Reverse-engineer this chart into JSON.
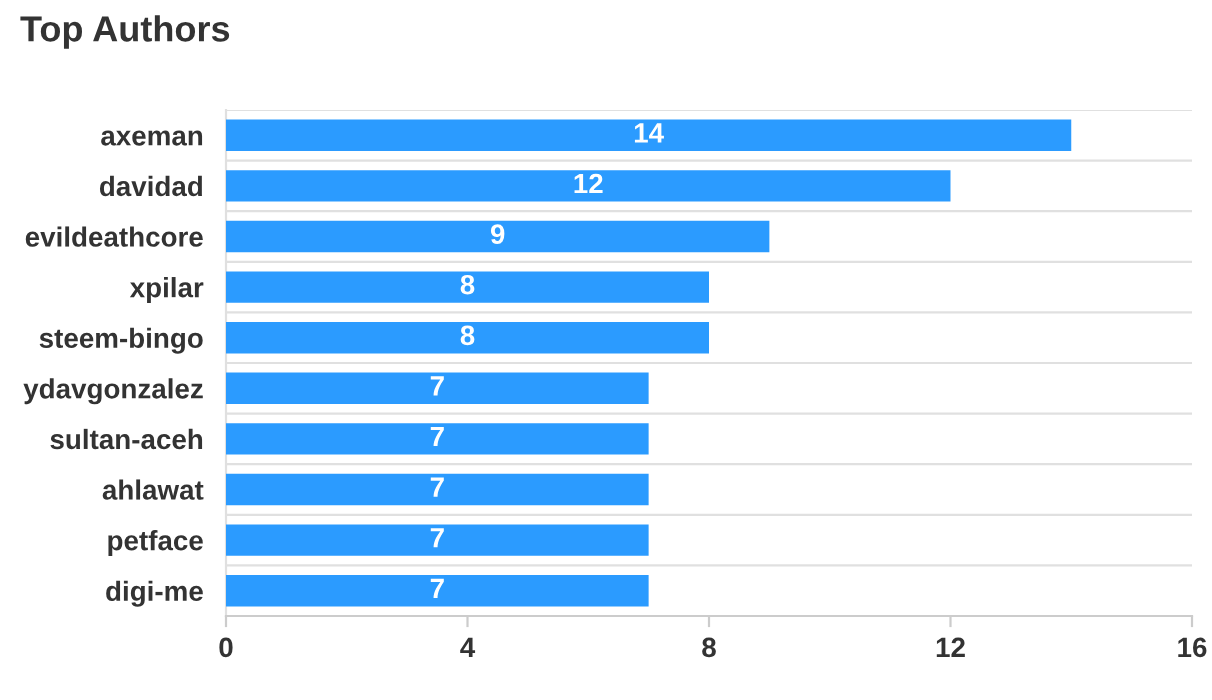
{
  "chart_data": {
    "type": "bar",
    "orientation": "horizontal",
    "title": "Top Authors",
    "categories": [
      "axeman",
      "davidad",
      "evildeathcore",
      "xpilar",
      "steem-bingo",
      "ydavgonzalez",
      "sultan-aceh",
      "ahlawat",
      "petface",
      "digi-me"
    ],
    "values": [
      14,
      12,
      9,
      8,
      8,
      7,
      7,
      7,
      7,
      7
    ],
    "color": "#2b9bff",
    "xlim": [
      0,
      16
    ],
    "xticks": [
      0,
      4,
      8,
      12,
      16
    ],
    "grid": "y",
    "data_labels": true
  }
}
